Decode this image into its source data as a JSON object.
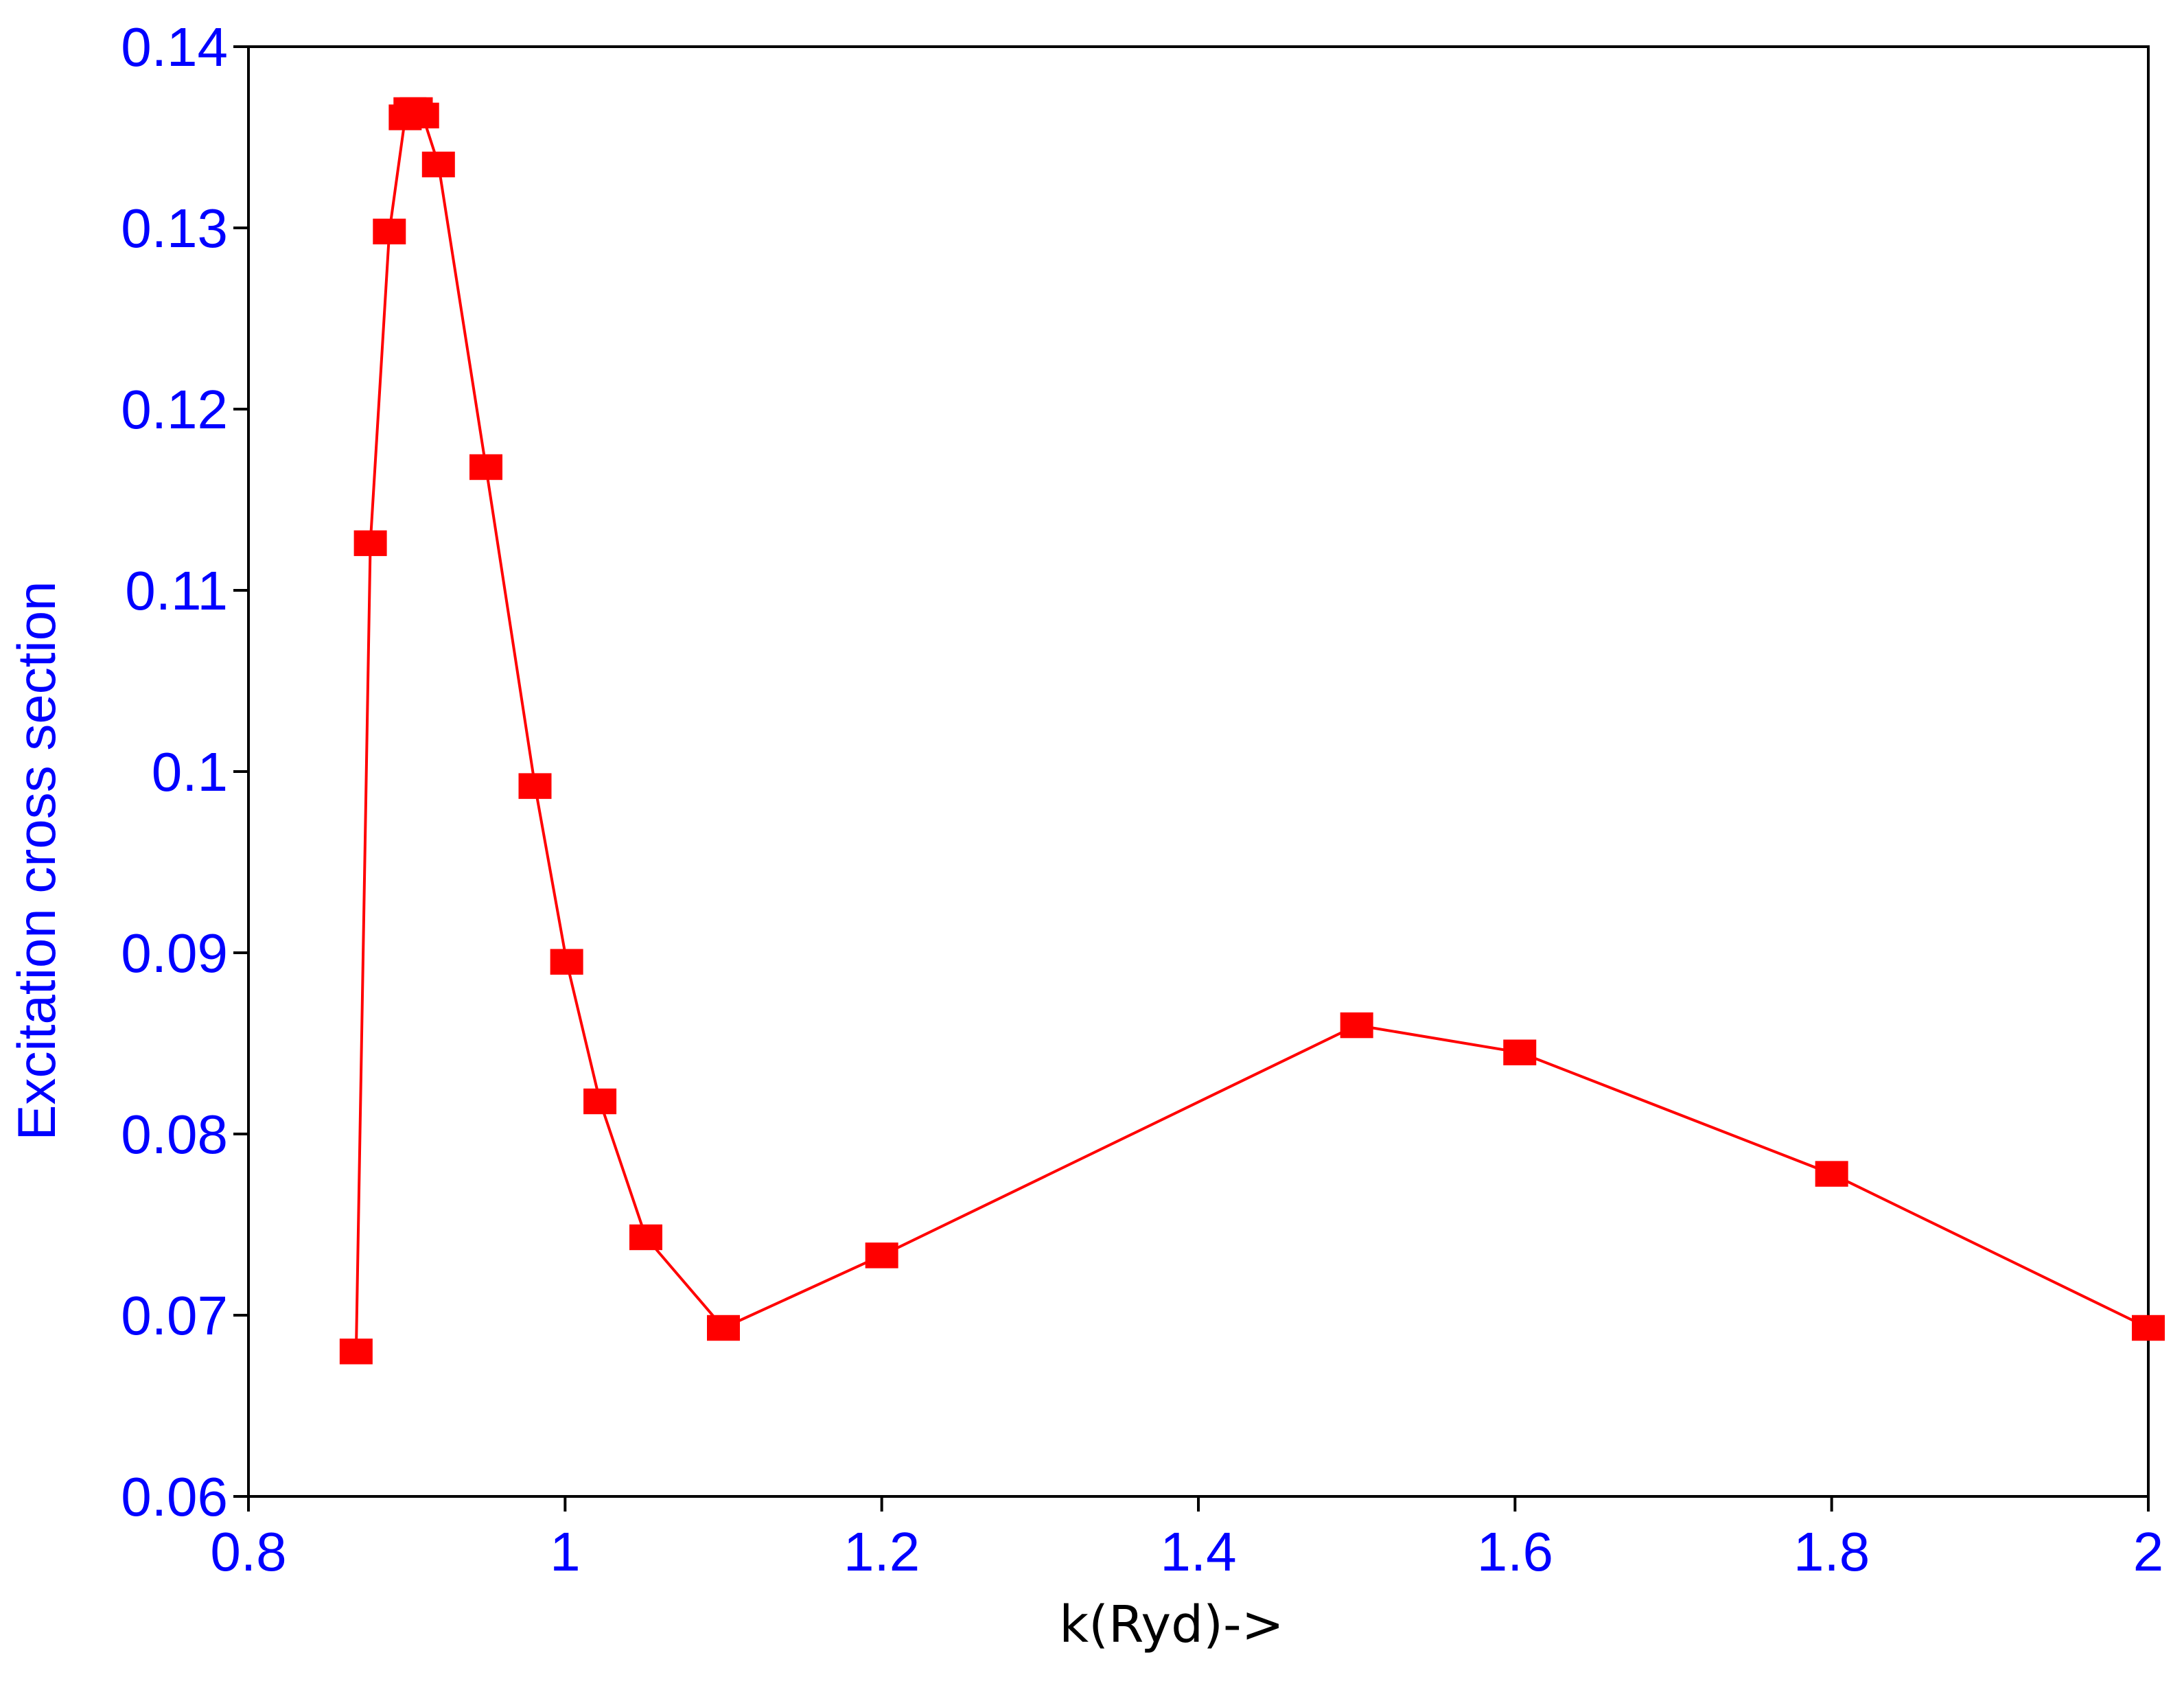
{
  "chart_data": {
    "type": "line",
    "title": "",
    "xlabel": "k(Ryd)->",
    "ylabel": "Excitation cross section",
    "xlim": [
      0.8,
      2.0
    ],
    "ylim": [
      0.06,
      0.14
    ],
    "xticks": [
      0.8,
      1.0,
      1.2,
      1.4,
      1.6,
      1.8,
      2.0
    ],
    "xtick_labels": [
      "0.8",
      "1",
      "1.2",
      "1.4",
      "1.6",
      "1.8",
      "2"
    ],
    "yticks": [
      0.06,
      0.07,
      0.08,
      0.09,
      0.1,
      0.11,
      0.12,
      0.13,
      0.14
    ],
    "ytick_labels": [
      "0.06",
      "0.07",
      "0.08",
      "0.09",
      "0.1",
      "0.11",
      "0.12",
      "0.13",
      "0.14"
    ],
    "grid": false,
    "legend": "none",
    "colors": {
      "series": "#ff0000",
      "tick_text": "#0000ff",
      "ylabel_text": "#0000ff",
      "xlabel_text": "#000000",
      "axes": "#000000"
    },
    "marker": "square",
    "series": [
      {
        "x": [
          0.868,
          0.877,
          0.889,
          0.899,
          0.902,
          0.906,
          0.91,
          0.92,
          0.95,
          0.981,
          1.001,
          1.022,
          1.051,
          1.1,
          1.2,
          1.5,
          1.603,
          1.8,
          2.0
        ],
        "y": [
          0.068,
          0.1126,
          0.1298,
          0.1361,
          0.1365,
          0.1365,
          0.1362,
          0.1335,
          0.1168,
          0.0992,
          0.0895,
          0.0818,
          0.0743,
          0.0693,
          0.0733,
          0.086,
          0.0845,
          0.0778,
          0.0693
        ]
      }
    ]
  }
}
